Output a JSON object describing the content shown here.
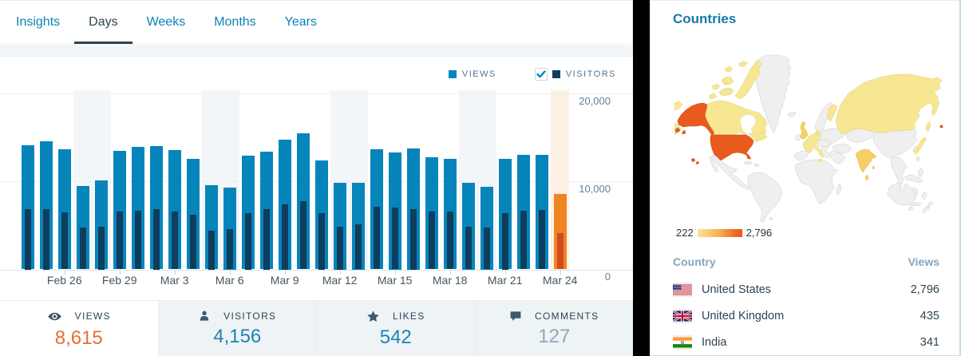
{
  "period_tabs": [
    {
      "label": "Insights",
      "selected": false
    },
    {
      "label": "Days",
      "selected": true
    },
    {
      "label": "Weeks",
      "selected": false
    },
    {
      "label": "Months",
      "selected": false
    },
    {
      "label": "Years",
      "selected": false
    }
  ],
  "legend": {
    "views_label": "VIEWS",
    "visitors_label": "VISITORS",
    "visitors_checked": true
  },
  "chart_data": {
    "type": "bar",
    "x": [
      "Feb 24",
      "Feb 25",
      "Feb 26",
      "Feb 27",
      "Feb 28",
      "Feb 29",
      "Mar 1",
      "Mar 2",
      "Mar 3",
      "Mar 4",
      "Mar 5",
      "Mar 6",
      "Mar 7",
      "Mar 8",
      "Mar 9",
      "Mar 10",
      "Mar 11",
      "Mar 12",
      "Mar 13",
      "Mar 14",
      "Mar 15",
      "Mar 16",
      "Mar 17",
      "Mar 18",
      "Mar 19",
      "Mar 20",
      "Mar 21",
      "Mar 22",
      "Mar 23",
      "Mar 24"
    ],
    "series": [
      {
        "name": "Views",
        "values": [
          14100,
          14550,
          13700,
          9450,
          10150,
          13450,
          13950,
          14050,
          13550,
          12550,
          9600,
          9350,
          12900,
          13400,
          14800,
          15500,
          12400,
          9900,
          9900,
          13700,
          13300,
          13750,
          12750,
          12600,
          9850,
          9400,
          12600,
          13000,
          13000,
          8615
        ]
      },
      {
        "name": "Visitors",
        "values": [
          6900,
          6850,
          6500,
          4750,
          4900,
          6600,
          6700,
          6900,
          6600,
          6200,
          4450,
          4550,
          6450,
          6850,
          7400,
          7800,
          6400,
          4900,
          5100,
          7100,
          7000,
          6900,
          6550,
          6550,
          4850,
          4750,
          6400,
          6650,
          6750,
          4156
        ]
      }
    ],
    "xtick_indices": [
      2,
      5,
      8,
      11,
      14,
      17,
      20,
      23,
      26,
      29
    ],
    "xtick_labels": [
      "Feb 26",
      "Feb 29",
      "Mar 3",
      "Mar 6",
      "Mar 9",
      "Mar 12",
      "Mar 15",
      "Mar 18",
      "Mar 21",
      "Mar 24"
    ],
    "yticks": [
      0,
      10000,
      20000
    ],
    "ytick_labels": [
      "0",
      "10,000",
      "20,000"
    ],
    "ylim": [
      0,
      22000
    ],
    "weekend_indices": [
      3,
      4,
      10,
      11,
      17,
      18,
      24,
      25
    ],
    "today_index": 29,
    "legend_position": "top-right",
    "grid": true,
    "colors": {
      "views": "#0685bb",
      "visitors": "#0e3d5d",
      "views_today": "#ee8423",
      "visitors_today": "#d04c20",
      "weekend_band": "#f3f6f8",
      "today_band": "#fdf1e4"
    }
  },
  "summary_tabs": [
    {
      "label": "VIEWS",
      "value": "8,615",
      "icon": "eye",
      "selected": true,
      "value_color": "#ea6d34"
    },
    {
      "label": "VISITORS",
      "value": "4,156",
      "icon": "person",
      "selected": false,
      "value_color": "#1f83b0"
    },
    {
      "label": "LIKES",
      "value": "542",
      "icon": "star",
      "selected": false,
      "value_color": "#1f83b0"
    },
    {
      "label": "COMMENTS",
      "value": "127",
      "icon": "comment",
      "selected": false,
      "value_color": "#8fa8ba"
    }
  ],
  "countries": {
    "title": "Countries",
    "scale": {
      "min": "222",
      "max": "2,796"
    },
    "map_levels": {
      "united_states": "high",
      "canada": "low",
      "russia": "low",
      "united_kingdom": "mid",
      "western_europe": "low",
      "india": "mid",
      "japan": "low",
      "finland": "low"
    },
    "table": {
      "headers": [
        "Country",
        "Views"
      ],
      "rows": [
        {
          "flag": "us",
          "country": "United States",
          "views": "2,796"
        },
        {
          "flag": "gb",
          "country": "United Kingdom",
          "views": "435"
        },
        {
          "flag": "in",
          "country": "India",
          "views": "341"
        }
      ]
    }
  }
}
